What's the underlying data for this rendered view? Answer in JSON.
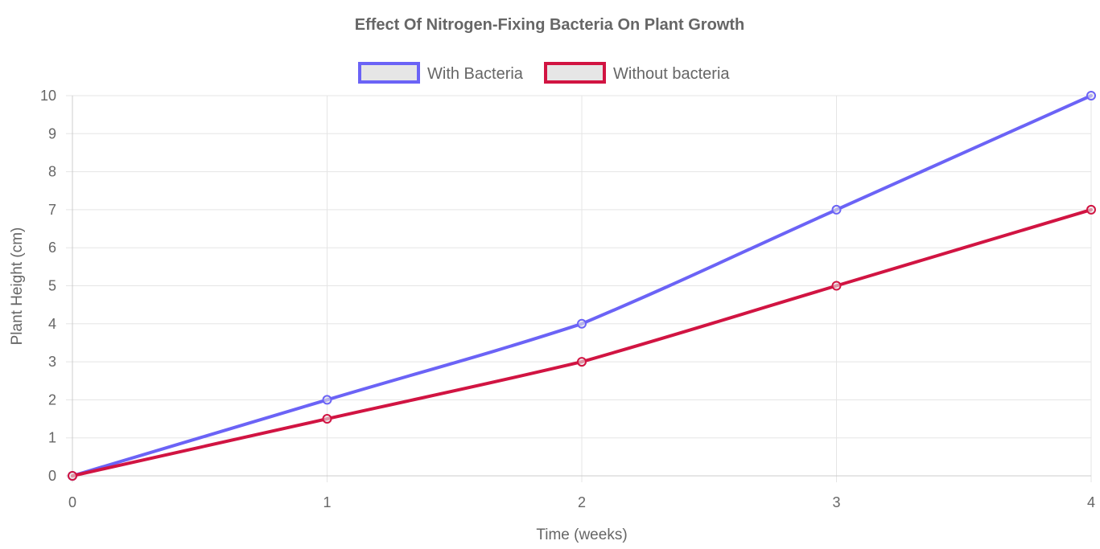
{
  "chart_data": {
    "type": "line",
    "title": "Effect Of Nitrogen-Fixing Bacteria On Plant Growth",
    "xlabel": "Time (weeks)",
    "ylabel": "Plant Height (cm)",
    "x": [
      0,
      1,
      2,
      3,
      4
    ],
    "x_tick_labels": [
      "0",
      "1",
      "2",
      "3",
      "4"
    ],
    "y_tick_labels": [
      "0",
      "1",
      "2",
      "3",
      "4",
      "5",
      "6",
      "7",
      "8",
      "9",
      "10"
    ],
    "xlim": [
      0,
      4
    ],
    "ylim": [
      0,
      10
    ],
    "grid": true,
    "legend_position": "top",
    "series": [
      {
        "name": "With Bacteria",
        "values": [
          0,
          2,
          4,
          7,
          10
        ],
        "color": "#6b63f6"
      },
      {
        "name": "Without bacteria",
        "values": [
          0,
          1.5,
          3,
          5,
          7
        ],
        "color": "#d11442"
      }
    ],
    "colors": {
      "grid": "#e5e5e5",
      "axis": "#cccccc",
      "text": "#666666",
      "legend_fill": "#e6e6e6"
    }
  }
}
